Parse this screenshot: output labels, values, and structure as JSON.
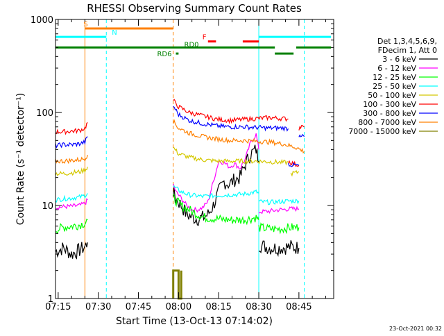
{
  "chart_data": {
    "type": "line",
    "title": "RHESSI Observing Summary Count Rates",
    "xlabel": "Start Time (13-Oct-13 07:14:02)",
    "ylabel": "Count Rate (s⁻¹ detector⁻¹)",
    "yscale": "log",
    "xlim_minutes": [
      0,
      104
    ],
    "ylim": [
      1,
      1000
    ],
    "x_ticks": [
      {
        "t": 1,
        "label": "07:15"
      },
      {
        "t": 16,
        "label": "07:30"
      },
      {
        "t": 31,
        "label": "07:45"
      },
      {
        "t": 46,
        "label": "08:00"
      },
      {
        "t": 61,
        "label": "08:15"
      },
      {
        "t": 76,
        "label": "08:30"
      },
      {
        "t": 91,
        "label": "08:45"
      }
    ],
    "y_ticks": [
      {
        "v": 1,
        "label": "1"
      },
      {
        "v": 10,
        "label": "10"
      },
      {
        "v": 100,
        "label": "100"
      },
      {
        "v": 1000,
        "label": "1000"
      }
    ],
    "legend": {
      "placement": "right",
      "header": [
        "Det 1,3,4,5,6,9,",
        "FDecim 1, Att 0"
      ]
    },
    "timestamp": "23-Oct-2021 00:32",
    "series": [
      {
        "name": "3 - 6 keV",
        "color": "#000000",
        "segments": [
          {
            "t": [
              0,
              3,
              6,
              9,
              11,
              12
            ],
            "y": [
              3.2,
              3.5,
              3.0,
              3.3,
              3.6,
              4.0
            ]
          },
          {
            "t": [
              44,
              45,
              47,
              49,
              51,
              53,
              55,
              57,
              59,
              61,
              63,
              65,
              67,
              69,
              71,
              73,
              75,
              76
            ],
            "y": [
              14,
              12,
              10,
              8,
              7.5,
              7.2,
              7.4,
              8,
              10,
              14,
              18,
              17,
              19,
              20,
              28,
              36,
              40,
              30
            ]
          },
          {
            "t": [
              76,
              80,
              84,
              88,
              91
            ],
            "y": [
              3.8,
              3.5,
              3.5,
              3.6,
              3.5
            ]
          }
        ]
      },
      {
        "name": "6 - 12 keV",
        "color": "#ff00ff",
        "segments": [
          {
            "t": [
              0,
              3,
              6,
              9,
              11,
              12
            ],
            "y": [
              9.5,
              9.7,
              9.8,
              10.0,
              10.5,
              11.5
            ]
          },
          {
            "t": [
              44,
              45,
              47,
              49,
              51,
              53,
              55,
              57,
              59,
              61,
              63,
              65,
              67,
              69,
              71,
              73,
              75,
              76
            ],
            "y": [
              17,
              14,
              12,
              10,
              9,
              9,
              9.5,
              11,
              18,
              30,
              29,
              26,
              28,
              25,
              32,
              48,
              58,
              40
            ]
          },
          {
            "t": [
              76,
              80,
              84,
              88,
              91
            ],
            "y": [
              8.5,
              8.7,
              9.0,
              9.2,
              9.2
            ]
          }
        ]
      },
      {
        "name": "12 - 25 keV",
        "color": "#00ff00",
        "segments": [
          {
            "t": [
              0,
              3,
              6,
              9,
              11,
              12
            ],
            "y": [
              5.5,
              5.8,
              6.0,
              6.2,
              6.5,
              7.0
            ]
          },
          {
            "t": [
              44,
              47,
              50,
              55,
              60,
              65,
              70,
              75,
              76
            ],
            "y": [
              12,
              10,
              9,
              7.5,
              7.2,
              7.0,
              7.0,
              7.4,
              7.0
            ]
          },
          {
            "t": [
              76,
              80,
              84,
              88,
              91
            ],
            "y": [
              5.8,
              5.6,
              5.6,
              5.8,
              5.8
            ]
          }
        ]
      },
      {
        "name": "25 - 50 keV",
        "color": "#00ffff",
        "segments": [
          {
            "t": [
              0,
              3,
              6,
              9,
              11,
              12
            ],
            "y": [
              11.5,
              11.8,
              12.0,
              12.3,
              12.8,
              13.5
            ]
          },
          {
            "t": [
              44,
              47,
              50,
              55,
              60,
              65,
              70,
              75,
              76
            ],
            "y": [
              16,
              14,
              13,
              12.5,
              12.8,
              13.0,
              13.2,
              14,
              13.5
            ]
          },
          {
            "t": [
              76,
              80,
              84,
              88,
              91
            ],
            "y": [
              11.0,
              10.8,
              11.0,
              11.2,
              11.2
            ]
          }
        ]
      },
      {
        "name": "50 - 100 keV",
        "color": "#d4c800",
        "segments": [
          {
            "t": [
              0,
              3,
              6,
              9,
              11,
              12
            ],
            "y": [
              22,
              22,
              22.5,
              23,
              24,
              26
            ]
          },
          {
            "t": [
              44,
              46,
              50,
              55,
              60,
              65,
              70,
              75,
              80,
              85,
              87
            ],
            "y": [
              42,
              36,
              33,
              31,
              30,
              30,
              30,
              30,
              29.5,
              29,
              29
            ]
          },
          {
            "t": [
              88,
              90,
              91
            ],
            "y": [
              22,
              22.5,
              23
            ]
          }
        ]
      },
      {
        "name": "100 - 300 keV",
        "color": "#ff0000",
        "segments": [
          {
            "t": [
              0,
              3,
              6,
              9,
              11,
              12
            ],
            "y": [
              62,
              62,
              63,
              64,
              68,
              78
            ]
          },
          {
            "t": [
              44,
              46,
              50,
              55,
              60,
              65,
              70,
              75,
              80,
              85,
              87
            ],
            "y": [
              135,
              115,
              100,
              92,
              85,
              82,
              84,
              86,
              88,
              86,
              85
            ]
          },
          {
            "t": [
              87,
              89,
              91
            ],
            "y": [
              30,
              28,
              27
            ]
          },
          {
            "t": [
              91,
              92,
              93
            ],
            "y": [
              68,
              70,
              70
            ]
          }
        ]
      },
      {
        "name": "300 - 800 keV",
        "color": "#0000ff",
        "segments": [
          {
            "t": [
              0,
              3,
              6,
              9,
              11,
              12
            ],
            "y": [
              44,
              45,
              45,
              46,
              48,
              55
            ]
          },
          {
            "t": [
              44,
              46,
              50,
              55,
              60,
              65,
              70,
              75,
              80,
              85,
              87
            ],
            "y": [
              118,
              95,
              82,
              76,
              72,
              70,
              70,
              69,
              68,
              68,
              67
            ]
          },
          {
            "t": [
              87,
              89,
              91
            ],
            "y": [
              28,
              27,
              27
            ]
          },
          {
            "t": [
              91,
              92,
              93
            ],
            "y": [
              54,
              55,
              55
            ]
          }
        ]
      },
      {
        "name": "800 - 7000 keV",
        "color": "#ff8000",
        "segments": [
          {
            "t": [
              0,
              3,
              6,
              9,
              11,
              12
            ],
            "y": [
              30,
              30,
              30.5,
              31,
              32,
              35
            ]
          },
          {
            "t": [
              44,
              46,
              50,
              55,
              60,
              65,
              70,
              75,
              80,
              85,
              90,
              93
            ],
            "y": [
              80,
              68,
              60,
              55,
              52,
              50,
              50,
              49,
              48,
              46,
              42,
              38
            ]
          }
        ]
      },
      {
        "name": "7000 - 15000 keV",
        "color": "#808000",
        "segments": [
          {
            "t": [
              44,
              44,
              46,
              46,
              47,
              47
            ],
            "y": [
              1,
              2,
              2,
              1,
              1,
              2
            ]
          }
        ]
      }
    ],
    "annotations": {
      "attenuator_markers": [
        {
          "label": "S",
          "color": "#ff8000",
          "t_start": 11,
          "t_end": 44,
          "y": 800
        },
        {
          "label": "N",
          "color": "#00ffff",
          "segments": [
            [
              0,
              19
            ],
            [
              76,
              103
            ]
          ],
          "y": 650
        },
        {
          "label": "F",
          "color": "#ff0000",
          "segments": [
            [
              57,
              60
            ],
            [
              70,
              76
            ]
          ],
          "y": 580
        },
        {
          "label": "RD6",
          "color": "#008000",
          "segments": [
            [
              45,
              46
            ],
            [
              82,
              89
            ]
          ],
          "y": 430
        },
        {
          "label": "RD0",
          "color": "#008000",
          "segments": [
            [
              0,
              82
            ],
            [
              90,
              103
            ]
          ],
          "y": 500
        }
      ],
      "vertical_lines": [
        {
          "t": 11,
          "color": "#ff8000",
          "style": "solid"
        },
        {
          "t": 19,
          "color": "#00ffff",
          "style": "dashed"
        },
        {
          "t": 44,
          "color": "#ff8000",
          "style": "dashed"
        },
        {
          "t": 76,
          "color": "#00ffff",
          "style": "solid"
        },
        {
          "t": 93,
          "color": "#00ffff",
          "style": "dashed"
        }
      ]
    }
  }
}
